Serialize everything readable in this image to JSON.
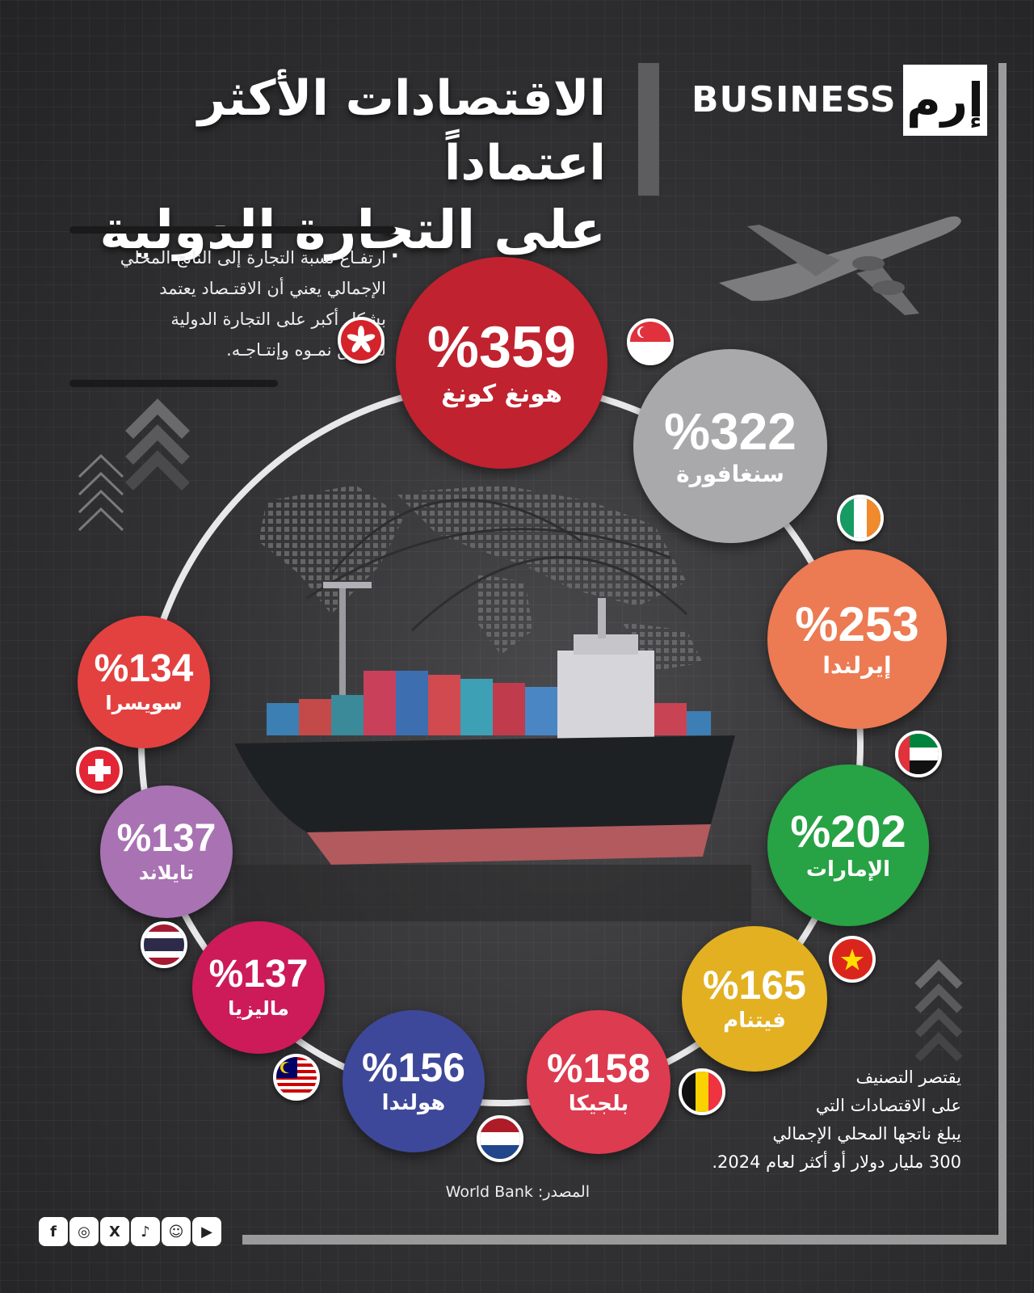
{
  "brand": {
    "text": "BUSINESS",
    "logo": "إرم"
  },
  "title": {
    "line1": "الاقتصادات الأكثر اعتماداً",
    "line2": "على التجارة الدولية"
  },
  "intro": {
    "lines": [
      "ارتفـاع نسبة التجارة إلى الناتج المحلي",
      "الإجمالي يعني أن الاقتـصاد يعتمد",
      "بشكل أكبر على التجارة الدولية",
      "لتحقيق نمـوه وإنتـاجـه."
    ]
  },
  "economies": [
    {
      "pct": "%359",
      "name": "هونغ كونغ",
      "color": "#c0222f",
      "flag": "hong-kong-flag"
    },
    {
      "pct": "%322",
      "name": "سنغافورة",
      "color": "#a9a9ab",
      "flag": "singapore-flag"
    },
    {
      "pct": "%253",
      "name": "إيرلندا",
      "color": "#ec7a52",
      "flag": "ireland-flag"
    },
    {
      "pct": "%202",
      "name": "الإمارات",
      "color": "#27a245",
      "flag": "uae-flag"
    },
    {
      "pct": "%165",
      "name": "فيتنام",
      "color": "#e3b022",
      "flag": "vietnam-flag"
    },
    {
      "pct": "%158",
      "name": "بلجيكا",
      "color": "#dd3b50",
      "flag": "belgium-flag"
    },
    {
      "pct": "%156",
      "name": "هولندا",
      "color": "#3e489a",
      "flag": "netherlands-flag"
    },
    {
      "pct": "%137",
      "name": "ماليزيا",
      "color": "#cc1b58",
      "flag": "malaysia-flag"
    },
    {
      "pct": "%137",
      "name": "تايلاند",
      "color": "#a872b3",
      "flag": "thailand-flag"
    },
    {
      "pct": "%134",
      "name": "سويسرا",
      "color": "#e34140",
      "flag": "switzerland-flag"
    }
  ],
  "note": {
    "lines": [
      "يقتصر التصنيف",
      "على الاقتصادات التي",
      "يبلغ ناتجها المحلي الإجمالي",
      "300 مليار دولار أو أكثر لعام 2024."
    ]
  },
  "source": "المصدر: World Bank",
  "socials": [
    "facebook-icon",
    "instagram-icon",
    "x-icon",
    "tiktok-icon",
    "snapchat-icon",
    "youtube-icon"
  ],
  "social_glyphs": {
    "facebook": "f",
    "instagram": "◎",
    "x": "X",
    "tiktok": "♪",
    "snapchat": "☺",
    "youtube": "▶"
  }
}
